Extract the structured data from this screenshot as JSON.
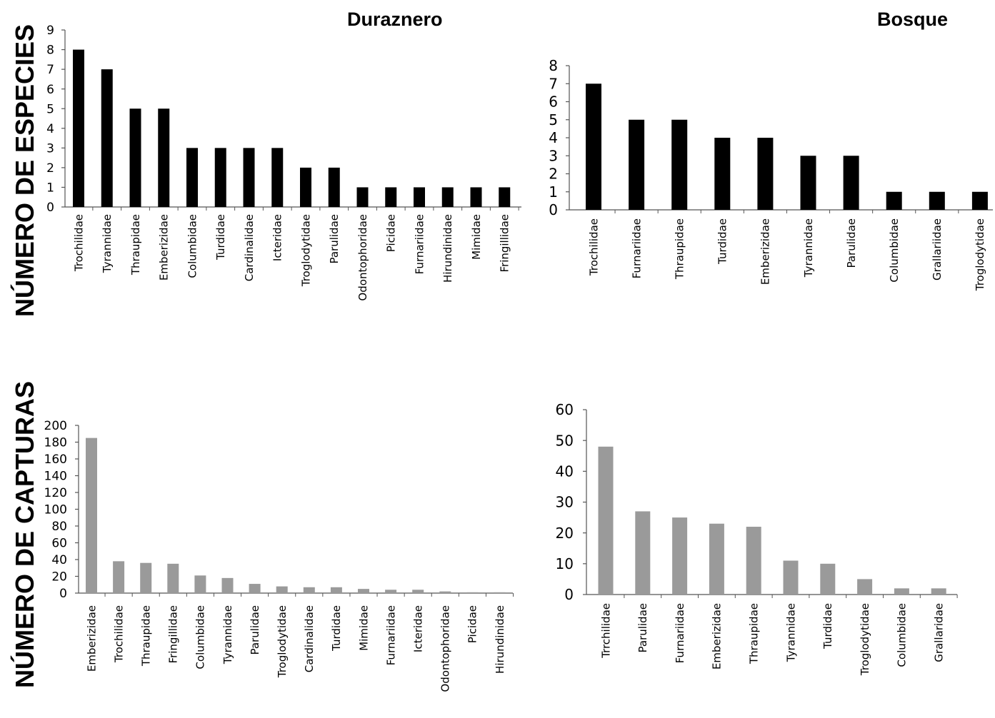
{
  "headers": {
    "left_column": "Duraznero",
    "right_column": "Bosque"
  },
  "row_labels": {
    "top": "NÚMERO DE ESPECIES",
    "bottom": "NÚMERO DE CAPTURAS"
  },
  "colors": {
    "black_bars": "#000000",
    "gray_bars": "#9a9a9a",
    "axis": "#555555"
  },
  "chart_data": [
    {
      "type": "bar",
      "categories": [
        "Trochilidae",
        "Tyrannidae",
        "Thraupidae",
        "Emberizidae",
        "Columbidae",
        "Turdidae",
        "Cardinalidae",
        "Icteridae",
        "Troglodytidae",
        "Parulidae",
        "Odontophoridae",
        "Picidae",
        "Furnariidae",
        "Hirundinidae",
        "Mimidae",
        "Fringillidae"
      ],
      "values": [
        8,
        7,
        5,
        5,
        3,
        3,
        3,
        3,
        2,
        2,
        1,
        1,
        1,
        1,
        1,
        1
      ],
      "ylim": [
        0,
        9
      ],
      "yticks": [
        0,
        1,
        2,
        3,
        4,
        5,
        6,
        7,
        8,
        9
      ],
      "color": "#000000",
      "grid": false
    },
    {
      "type": "bar",
      "categories": [
        "Trochilidae",
        "Furnariidae",
        "Thraupidae",
        "Turdidae",
        "Emberizidae",
        "Tyrannidae",
        "Parulidae",
        "Columbidae",
        "Grallariidae",
        "Troglodytidae"
      ],
      "values": [
        7,
        5,
        5,
        4,
        4,
        3,
        3,
        1,
        1,
        1
      ],
      "ylim": [
        0,
        8
      ],
      "yticks": [
        0,
        1,
        2,
        3,
        4,
        5,
        6,
        7,
        8
      ],
      "color": "#000000",
      "grid": false
    },
    {
      "type": "bar",
      "categories": [
        "Emberizidae",
        "Trochilidae",
        "Thraupidae",
        "Fringillidae",
        "Columbidae",
        "Tyrannidae",
        "Parulidae",
        "Troglodytidae",
        "Cardinalidae",
        "Turdidae",
        "Mimidae",
        "Furnariidae",
        "Icteridae",
        "Odontophoridae",
        "Picidae",
        "Hirundinidae"
      ],
      "values": [
        185,
        38,
        36,
        35,
        21,
        18,
        11,
        8,
        7,
        7,
        5,
        4,
        4,
        2,
        1,
        1
      ],
      "ylim": [
        0,
        200
      ],
      "yticks": [
        0,
        20,
        40,
        60,
        80,
        100,
        120,
        140,
        160,
        180,
        200
      ],
      "color": "#9a9a9a",
      "grid": false
    },
    {
      "type": "bar",
      "categories": [
        "Trrchilidae",
        "Parulidae",
        "Furnariidae",
        "Emberizidae",
        "Thraupidae",
        "Tyrannidae",
        "Turdidae",
        "Troglodytidae",
        "Columbidae",
        "Grallaridae"
      ],
      "values": [
        48,
        27,
        25,
        23,
        22,
        11,
        10,
        5,
        2,
        2
      ],
      "ylim": [
        0,
        60
      ],
      "yticks": [
        0,
        10,
        20,
        30,
        40,
        50,
        60
      ],
      "color": "#9a9a9a",
      "grid": false
    }
  ]
}
